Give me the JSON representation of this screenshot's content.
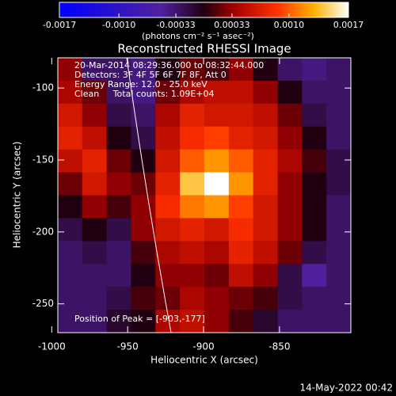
{
  "chart_data": {
    "type": "heatmap",
    "title": "Reconstructed RHESSI Image",
    "colorbar_label": "(photons cm⁻² s⁻¹ asec⁻²)",
    "xlabel": "Heliocentric X (arcsec)",
    "ylabel": "Heliocentric Y (arcsec)",
    "annotations": [
      "20-Mar-2014 08:29:36.000 to 08:32:44.000",
      "Detectors: 3F 4F 5F 6F 7F 8F, Att 0",
      "Energy Range: 12.0 - 25.0 keV",
      "Clean     Total counts: 1.09E+04"
    ],
    "peak_label": "Position of Peak = [-903,-177]",
    "footer": "14-May-2022 00:42",
    "xlim": [
      -996,
      -803
    ],
    "ylim": [
      -270,
      -79
    ],
    "xticks": [
      -1000,
      -950,
      -900,
      -850
    ],
    "yticks": [
      -100,
      -150,
      -200,
      -250
    ],
    "zlim": [
      -0.0017,
      0.0017
    ],
    "zticks": [
      {
        "value": -0.0017,
        "label": "-0.0017"
      },
      {
        "value": -0.001,
        "label": "-0.0010"
      },
      {
        "value": -0.00033,
        "label": "-0.00033"
      },
      {
        "value": 0.00033,
        "label": "0.00033"
      },
      {
        "value": 0.001,
        "label": "0.0010"
      },
      {
        "value": 0.0017,
        "label": "0.0017"
      }
    ],
    "z": [
      [
        0.0003,
        -0.0003,
        -0.0003,
        -0.0004,
        0,
        0.0002,
        0.0001,
        0.0003,
        0,
        -0.0003,
        -0.0004,
        -0.0003
      ],
      [
        0.0004,
        0.0002,
        -0.0003,
        -0.0004,
        0.0002,
        0.0004,
        0.0005,
        0.0005,
        0.0003,
        0,
        -0.0003,
        -0.0003
      ],
      [
        0.0006,
        0.0003,
        -0.0002,
        -0.0003,
        0.0004,
        0.0007,
        0.0006,
        0.0006,
        0.0005,
        0.0002,
        -0.0002,
        -0.0003
      ],
      [
        0.0007,
        0.0005,
        0,
        -0.0002,
        0.0005,
        0.0008,
        0.0009,
        0.0007,
        0.0006,
        0.0003,
        0,
        -0.0003
      ],
      [
        0.0005,
        0.0007,
        0.0002,
        0,
        0.0006,
        0.001,
        0.0012,
        0.001,
        0.0007,
        0.0004,
        0.0001,
        -0.0002
      ],
      [
        0.0002,
        0.0006,
        0.0003,
        0.0002,
        0.0007,
        0.0014,
        0.0017,
        0.0012,
        0.0007,
        0.0003,
        0,
        -0.0002
      ],
      [
        0,
        0.0003,
        0.0001,
        0.0003,
        0.0008,
        0.0011,
        0.0012,
        0.0009,
        0.0006,
        0.0003,
        0,
        -0.0003
      ],
      [
        -0.0002,
        0,
        -0.0002,
        0.0003,
        0.0006,
        0.0007,
        0.0006,
        0.0008,
        0.0006,
        0.0003,
        0,
        -0.0003
      ],
      [
        -0.0003,
        -0.0002,
        -0.0003,
        0.0001,
        0.0004,
        0.0005,
        0.0004,
        0.0007,
        0.0005,
        0.0002,
        -0.0002,
        -0.0003
      ],
      [
        -0.0003,
        -0.0003,
        -0.0003,
        0,
        0.0003,
        0.0003,
        0.0002,
        0.0005,
        0.0003,
        -0.0002,
        -0.0005,
        -0.0003
      ],
      [
        -0.0003,
        -0.0003,
        -0.0002,
        0.0001,
        0.0002,
        0.0004,
        0.0003,
        0.0002,
        0.0001,
        -0.0002,
        -0.0003,
        -0.0003
      ],
      [
        -0.0003,
        -0.0003,
        -0.0001,
        0,
        0.0004,
        0.0005,
        0.0003,
        0.0001,
        -0.0001,
        -0.0003,
        -0.0003,
        -0.0003
      ]
    ]
  }
}
